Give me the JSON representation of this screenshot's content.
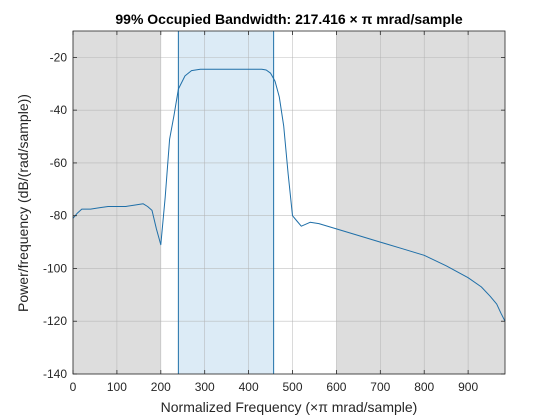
{
  "chart_data": {
    "type": "line",
    "title": "99% Occupied Bandwidth: 217.416 × π mrad/sample",
    "xlabel": "Normalized Frequency  (×π mrad/sample)",
    "ylabel": "Power/frequency (dB/(rad/sample))",
    "xlim": [
      0,
      984
    ],
    "ylim": [
      -140,
      -10
    ],
    "xticks": [
      0,
      100,
      200,
      300,
      400,
      500,
      600,
      700,
      800,
      900
    ],
    "yticks": [
      -140,
      -120,
      -100,
      -80,
      -60,
      -40,
      -20
    ],
    "grid": true,
    "shaded_regions": [
      {
        "x0": 0,
        "x1": 200,
        "color": "#dddddd"
      },
      {
        "x0": 600,
        "x1": 984,
        "color": "#dddddd"
      }
    ],
    "occupied_band": {
      "x0": 240,
      "x1": 457,
      "fill": "#dcebf6",
      "edge": "#1f6fa8"
    },
    "series": [
      {
        "color": "#1f6fa8",
        "x": [
          0,
          10,
          20,
          40,
          60,
          80,
          100,
          120,
          140,
          160,
          170,
          180,
          190,
          200,
          210,
          220,
          230,
          240,
          255,
          270,
          290,
          310,
          340,
          370,
          400,
          430,
          440,
          450,
          460,
          470,
          480,
          490,
          500,
          510,
          520,
          540,
          560,
          600,
          650,
          700,
          750,
          800,
          850,
          900,
          930,
          950,
          965,
          975,
          984
        ],
        "y": [
          -81,
          -79,
          -77.5,
          -77.5,
          -77,
          -76.5,
          -76.5,
          -76.5,
          -76,
          -75.5,
          -76.5,
          -78,
          -85,
          -91,
          -73,
          -51,
          -42,
          -32,
          -27,
          -25,
          -24.5,
          -24.5,
          -24.5,
          -24.5,
          -24.5,
          -24.5,
          -24.8,
          -26,
          -29,
          -35,
          -46,
          -64,
          -80,
          -82,
          -84,
          -82.5,
          -83,
          -85,
          -87.5,
          -90,
          -92.5,
          -95,
          -99,
          -103.5,
          -107,
          -110.5,
          -113.5,
          -117,
          -120
        ]
      }
    ]
  }
}
